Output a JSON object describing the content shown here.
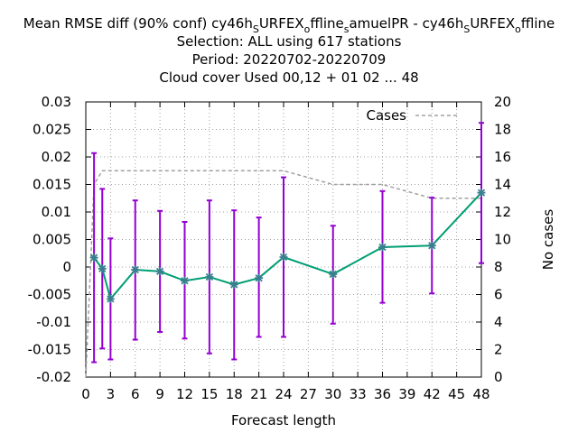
{
  "chart_data": {
    "type": "line",
    "title_lines": [
      "Mean RMSE diff (90% conf) cy46h_SURFEX_offline_samuelPR - cy46h_SURFEX_offline",
      "Selection: ALL using   617 stations",
      "Period: 20220702-20220709",
      "Cloud cover   Used  00,12  + 01 02 ... 48"
    ],
    "xlabel": "Forecast length",
    "ylabel": "",
    "y2label": "No cases",
    "xlim": [
      0,
      48
    ],
    "ylim": [
      -0.02,
      0.03
    ],
    "y2lim": [
      0,
      20
    ],
    "grid": true,
    "x_ticks": [
      0,
      3,
      6,
      9,
      12,
      15,
      18,
      21,
      24,
      27,
      30,
      33,
      36,
      39,
      42,
      45,
      48
    ],
    "y_ticks": [
      -0.02,
      -0.015,
      -0.01,
      -0.005,
      0,
      0.005,
      0.01,
      0.015,
      0.02,
      0.025,
      0.03
    ],
    "y_tick_labels": [
      "-0.02",
      "-0.015",
      "-0.01",
      "-0.005",
      "0",
      "0.005",
      "0.01",
      "0.015",
      "0.02",
      "0.025",
      "0.03"
    ],
    "y2_ticks": [
      0,
      2,
      4,
      6,
      8,
      10,
      12,
      14,
      16,
      18,
      20
    ],
    "legend": {
      "position": "top-right",
      "label": "Cases"
    },
    "series": [
      {
        "name": "diff",
        "color": "#009e73",
        "errorbar_color": "#9400d3",
        "x": [
          1,
          2,
          3,
          6,
          9,
          12,
          15,
          18,
          21,
          24,
          30,
          36,
          42,
          48
        ],
        "y": [
          0.0017,
          -0.0003,
          -0.0058,
          -0.0005,
          -0.0008,
          -0.0025,
          -0.0018,
          -0.0032,
          -0.002,
          0.0018,
          -0.0013,
          0.0036,
          0.0039,
          0.0135
        ],
        "y_low": [
          -0.0173,
          -0.0148,
          -0.0168,
          -0.0132,
          -0.0118,
          -0.013,
          -0.0157,
          -0.0168,
          -0.0127,
          -0.0127,
          -0.0103,
          -0.0065,
          -0.0048,
          0.0007
        ],
        "y_high": [
          0.0207,
          0.0142,
          0.0052,
          0.0121,
          0.0102,
          0.0082,
          0.0121,
          0.0103,
          0.009,
          0.0163,
          0.0075,
          0.0138,
          0.0126,
          0.0262
        ]
      }
    ],
    "cases": {
      "name": "Cases",
      "color": "#a0a0a0",
      "x": [
        0,
        1,
        2,
        3,
        6,
        9,
        12,
        15,
        18,
        21,
        24,
        30,
        36,
        42,
        48
      ],
      "y": [
        0,
        14,
        15,
        15,
        15,
        15,
        15,
        15,
        15,
        15,
        15,
        14,
        14,
        13,
        13
      ]
    }
  }
}
